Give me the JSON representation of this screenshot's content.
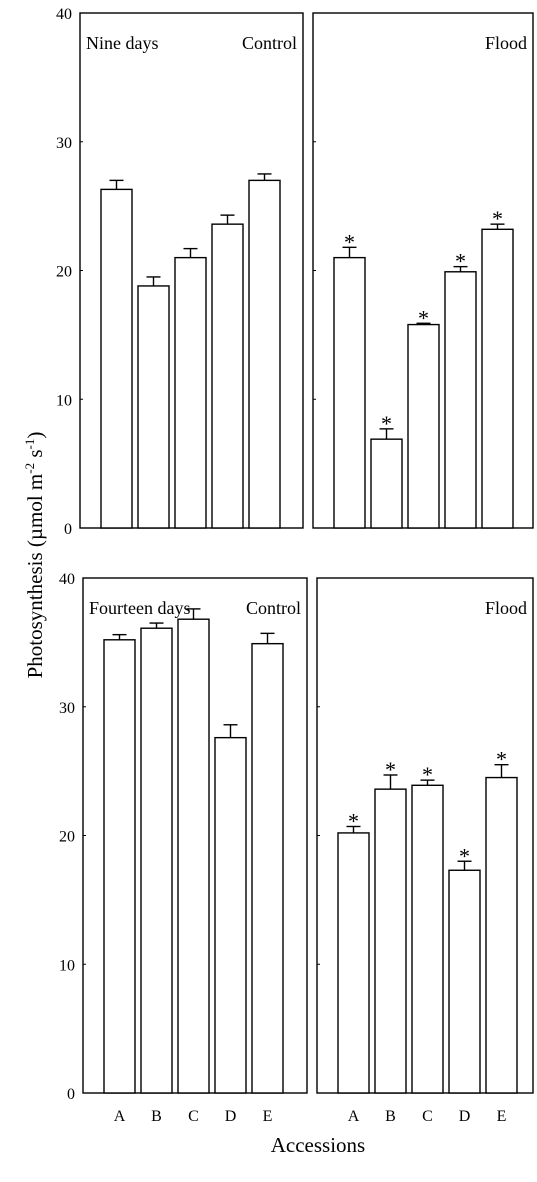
{
  "figure": {
    "ylabel_main": "Photosynthesis (µmol m",
    "ylabel_exp1": "-2",
    "ylabel_mid": " s",
    "ylabel_exp2": "-1",
    "ylabel_end": ")",
    "xlabel": "Accessions"
  },
  "chart_data": [
    {
      "type": "bar",
      "row_label": "Nine days",
      "panel_label": "Control",
      "categories": [
        "A",
        "B",
        "C",
        "D",
        "E"
      ],
      "values": [
        26.3,
        18.8,
        21.0,
        23.6,
        27.0
      ],
      "errors": [
        0.7,
        0.7,
        0.7,
        0.7,
        0.5
      ],
      "significance": [
        "",
        "",
        "",
        "",
        ""
      ],
      "ylim": [
        0,
        40
      ],
      "yticks": [
        0,
        10,
        20,
        30,
        40
      ]
    },
    {
      "type": "bar",
      "row_label": "",
      "panel_label": "Flood",
      "categories": [
        "A",
        "B",
        "C",
        "D",
        "E"
      ],
      "values": [
        21.0,
        6.9,
        15.8,
        19.9,
        23.2
      ],
      "errors": [
        0.8,
        0.8,
        0.1,
        0.4,
        0.4
      ],
      "significance": [
        "*",
        "*",
        "*",
        "*",
        "*"
      ],
      "ylim": [
        0,
        40
      ],
      "yticks": [
        0,
        10,
        20,
        30,
        40
      ]
    },
    {
      "type": "bar",
      "row_label": "Fourteen days",
      "panel_label": "Control",
      "categories": [
        "A",
        "B",
        "C",
        "D",
        "E"
      ],
      "values": [
        35.2,
        36.1,
        36.8,
        27.6,
        34.9
      ],
      "errors": [
        0.4,
        0.4,
        0.8,
        1.0,
        0.8
      ],
      "significance": [
        "",
        "",
        "",
        "",
        ""
      ],
      "ylim": [
        0,
        40
      ],
      "yticks": [
        0,
        10,
        20,
        30,
        40
      ]
    },
    {
      "type": "bar",
      "row_label": "",
      "panel_label": "Flood",
      "categories": [
        "A",
        "B",
        "C",
        "D",
        "E"
      ],
      "values": [
        20.2,
        23.6,
        23.9,
        17.3,
        24.5
      ],
      "errors": [
        0.5,
        1.1,
        0.4,
        0.7,
        1.0
      ],
      "significance": [
        "*",
        "*",
        "*",
        "*",
        "*"
      ],
      "ylim": [
        0,
        40
      ],
      "yticks": [
        0,
        10,
        20,
        30,
        40
      ]
    }
  ]
}
